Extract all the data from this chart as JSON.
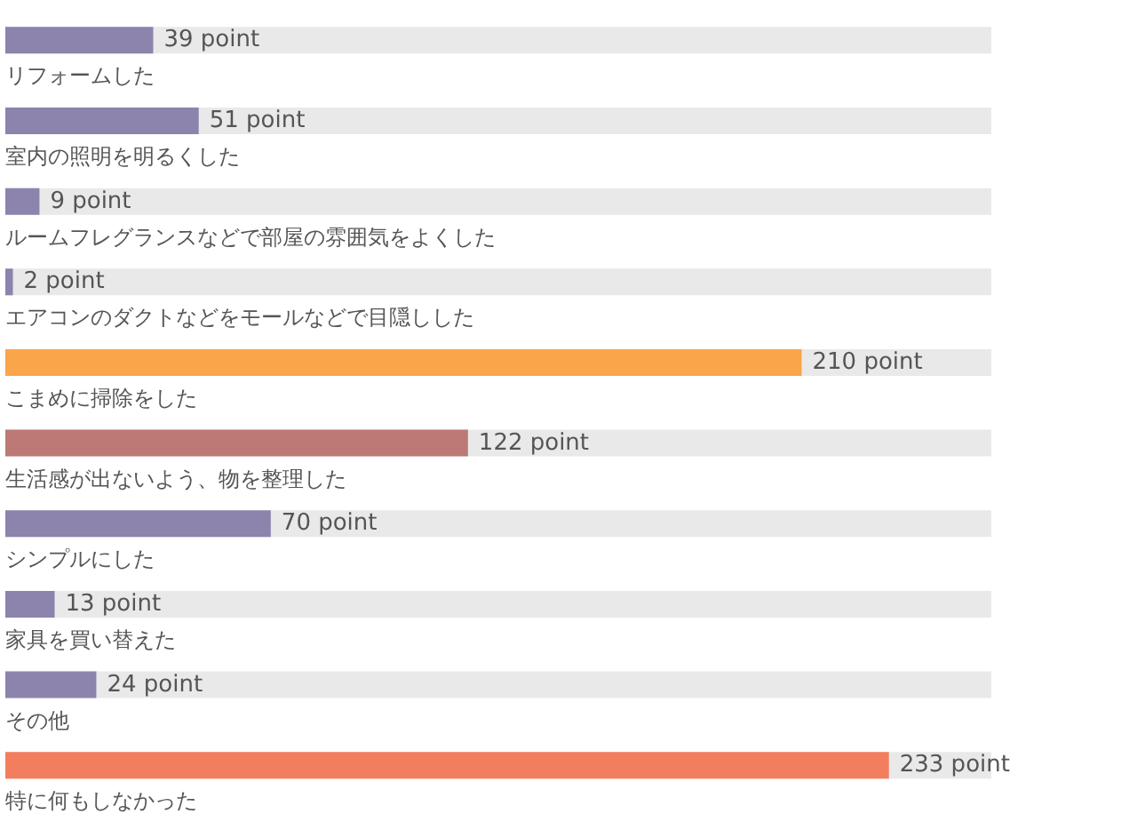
{
  "chart_data": {
    "type": "bar",
    "orientation": "horizontal",
    "categories": [
      "リフォームした",
      "室内の照明を明るくした",
      "ルームフレグランスなどで部屋の雰囲気をよくした",
      "エアコンのダクトなどをモールなどで目隠しした",
      "こまめに掃除をした",
      "生活感が出ないよう、物を整理した",
      "シンプルにした",
      "家具を買い替えた",
      "その他",
      "特に何もしなかった"
    ],
    "values": [
      39,
      51,
      9,
      2,
      210,
      122,
      70,
      13,
      24,
      233
    ],
    "colors": [
      "#8c84ac",
      "#8c84ac",
      "#8c84ac",
      "#8c84ac",
      "#f9a54a",
      "#bc7976",
      "#8c84ac",
      "#8c84ac",
      "#8c84ac",
      "#f37e5e"
    ],
    "value_labels": [
      "39 point",
      "51 point",
      "9 point",
      "2 point",
      "210 point",
      "122 point",
      "70 point",
      "13 point",
      "24 point",
      "233 point"
    ],
    "xlim": [
      0,
      260
    ],
    "tick_labels": "y"
  }
}
